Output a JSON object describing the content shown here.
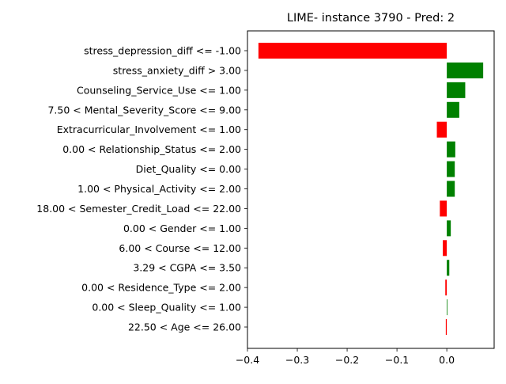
{
  "chart_data": {
    "type": "bar",
    "orientation": "horizontal",
    "title": "LIME- instance 3790 - Pred: 2",
    "xlabel": "",
    "ylabel": "",
    "xlim": [
      -0.4,
      0.095
    ],
    "xticks": [
      -0.4,
      -0.3,
      -0.2,
      -0.1,
      0.0
    ],
    "xtick_labels": [
      "−0.4",
      "−0.3",
      "−0.2",
      "−0.1",
      "0.0"
    ],
    "grid": false,
    "legend": "none",
    "colors": {
      "positive": "#008000",
      "negative": "#ff0000"
    },
    "categories": [
      "stress_depression_diff <= -1.00",
      "stress_anxiety_diff > 3.00",
      "Counseling_Service_Use <= 1.00",
      "7.50 < Mental_Severity_Score <= 9.00",
      "Extracurricular_Involvement <= 1.00",
      "0.00 < Relationship_Status <= 2.00",
      "Diet_Quality <= 0.00",
      "1.00 < Physical_Activity <= 2.00",
      "18.00 < Semester_Credit_Load <= 22.00",
      "0.00 < Gender <= 1.00",
      "6.00 < Course <= 12.00",
      "3.29 < CGPA <= 3.50",
      "0.00 < Residence_Type <= 2.00",
      "0.00 < Sleep_Quality <= 1.00",
      "22.50 < Age <= 26.00"
    ],
    "values": [
      -0.378,
      0.073,
      0.037,
      0.025,
      -0.02,
      0.017,
      0.016,
      0.016,
      -0.014,
      0.008,
      -0.008,
      0.005,
      -0.003,
      0.001,
      -0.002
    ]
  }
}
